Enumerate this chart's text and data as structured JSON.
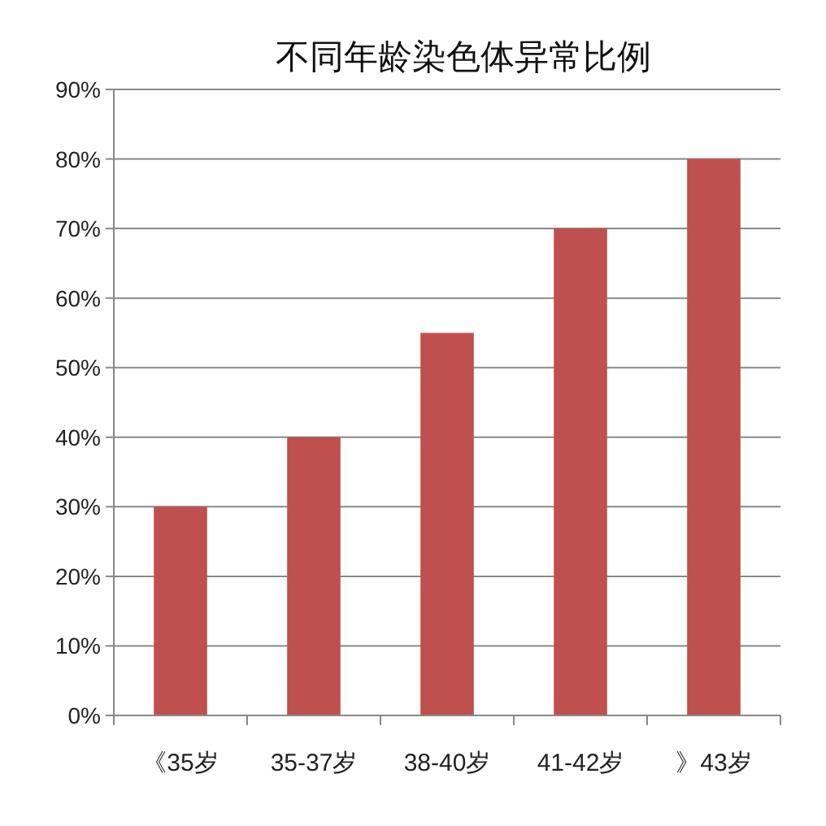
{
  "chart_data": {
    "type": "bar",
    "title": "不同年龄染色体异常比例",
    "categories": [
      "《35岁",
      "35-37岁",
      "38-40岁",
      "41-42岁",
      "》43岁"
    ],
    "values": [
      30,
      40,
      55,
      70,
      80
    ],
    "color": "#c0504d",
    "ylim": [
      0,
      90
    ],
    "yticks": [
      {
        "value": 0,
        "label": "0%"
      },
      {
        "value": 10,
        "label": "10%"
      },
      {
        "value": 20,
        "label": "20%"
      },
      {
        "value": 30,
        "label": "30%"
      },
      {
        "value": 40,
        "label": "40%"
      },
      {
        "value": 50,
        "label": "50%"
      },
      {
        "value": 60,
        "label": "60%"
      },
      {
        "value": 70,
        "label": "70%"
      },
      {
        "value": 80,
        "label": "80%"
      },
      {
        "value": 90,
        "label": "90%"
      }
    ],
    "grid": "y"
  }
}
